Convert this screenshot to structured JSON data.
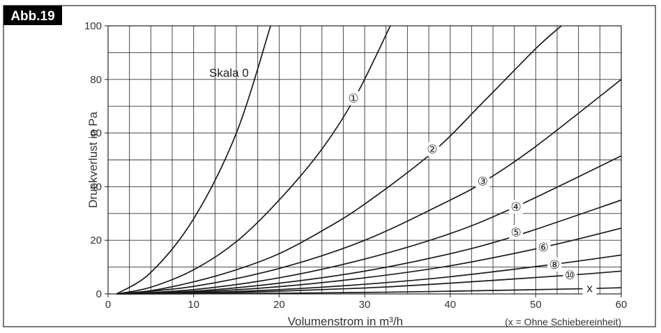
{
  "badge": "Abb.19",
  "chart_data": {
    "type": "line",
    "xlabel": "Volumenstrom in m³/h",
    "ylabel": "Druckverlust in Pa",
    "note": "(x = Ohne Schiebereinheit)",
    "xlim": [
      0,
      60
    ],
    "ylim": [
      0,
      100
    ],
    "xticks": [
      0,
      10,
      20,
      30,
      40,
      50,
      60
    ],
    "yticks": [
      0,
      20,
      40,
      60,
      80,
      100
    ],
    "grid": true,
    "series": [
      {
        "name": "Skala 0",
        "x": [
          1,
          5,
          10,
          15,
          19
        ],
        "y": [
          0,
          8,
          28,
          60,
          100
        ]
      },
      {
        "name": "①",
        "x": [
          1,
          5,
          10,
          15,
          20,
          25,
          29,
          33
        ],
        "y": [
          0,
          2.5,
          9,
          19.5,
          35,
          54,
          74,
          100
        ]
      },
      {
        "name": "②",
        "x": [
          1,
          5,
          10,
          15,
          20,
          25,
          30,
          38,
          44,
          50,
          53
        ],
        "y": [
          0,
          1.2,
          4.5,
          9,
          15,
          23.5,
          33.5,
          53,
          72,
          91.5,
          100
        ]
      },
      {
        "name": "③",
        "x": [
          1,
          10,
          20,
          30,
          40,
          44,
          50,
          60
        ],
        "y": [
          0,
          2.8,
          9.5,
          20,
          35,
          42,
          55,
          80
        ]
      },
      {
        "name": "④",
        "x": [
          1,
          10,
          20,
          30,
          40,
          48,
          60
        ],
        "y": [
          0,
          1.6,
          6,
          13,
          22.5,
          33,
          51.5
        ]
      },
      {
        "name": "⑤",
        "x": [
          1,
          10,
          20,
          30,
          40,
          48,
          60
        ],
        "y": [
          0,
          1.0,
          4,
          8.5,
          15,
          22,
          35
        ]
      },
      {
        "name": "⑥",
        "x": [
          1,
          10,
          20,
          30,
          40,
          51,
          60
        ],
        "y": [
          0,
          0.7,
          2.7,
          6,
          10.5,
          17.5,
          24.5
        ]
      },
      {
        "name": "⑧",
        "x": [
          1,
          10,
          20,
          30,
          40,
          52,
          60
        ],
        "y": [
          0,
          0.4,
          1.6,
          3.6,
          6.4,
          11,
          14.5
        ]
      },
      {
        "name": "⑩",
        "x": [
          1,
          10,
          20,
          30,
          40,
          54,
          60
        ],
        "y": [
          0,
          0.25,
          1,
          2.2,
          4,
          7,
          8.5
        ]
      },
      {
        "name": "x",
        "x": [
          1,
          10,
          20,
          30,
          40,
          55,
          60
        ],
        "y": [
          0,
          0.06,
          0.25,
          0.55,
          1.0,
          1.9,
          2.3
        ]
      }
    ]
  }
}
